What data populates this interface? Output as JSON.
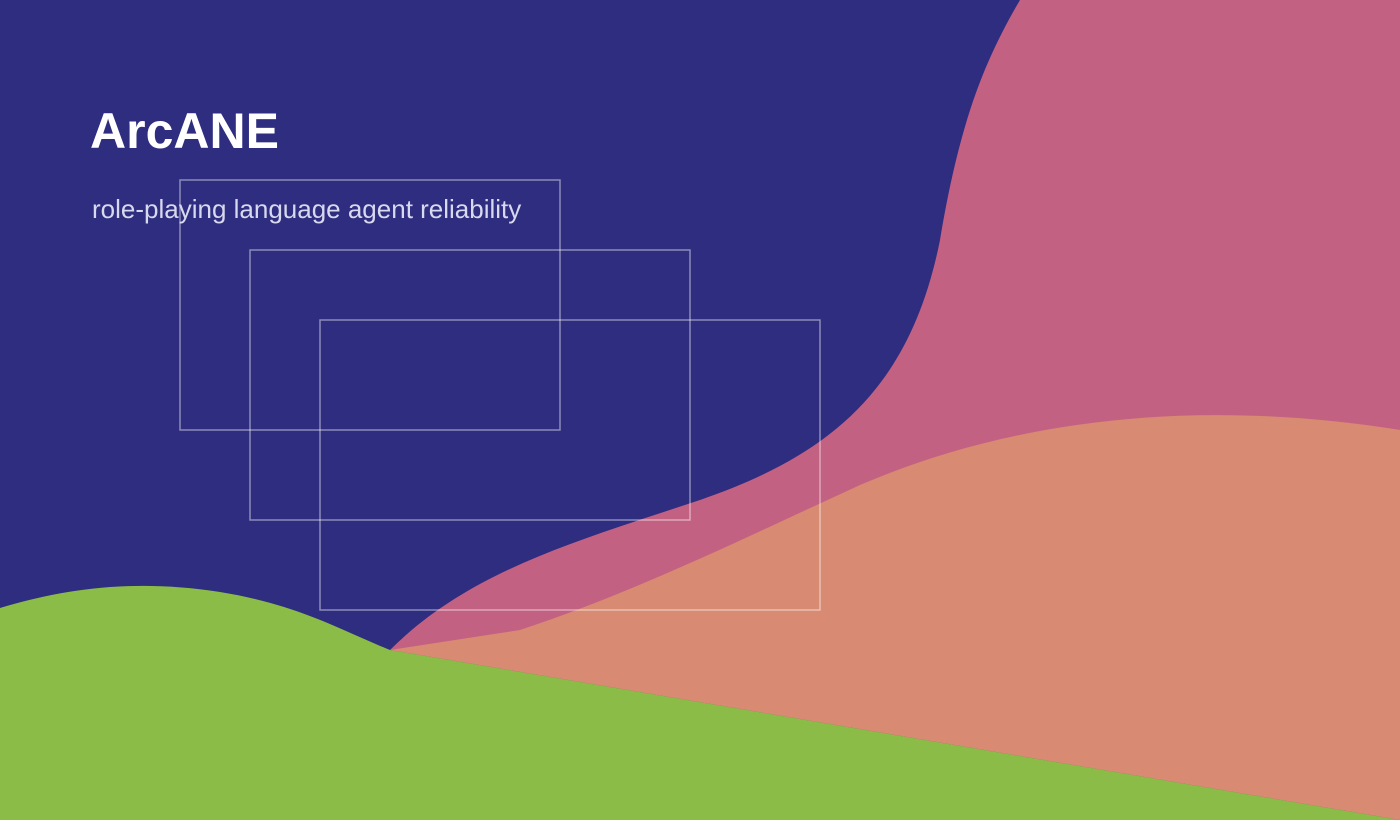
{
  "header": {
    "title": "ArcANE",
    "subtitle": "role-playing language agent reliability"
  }
}
